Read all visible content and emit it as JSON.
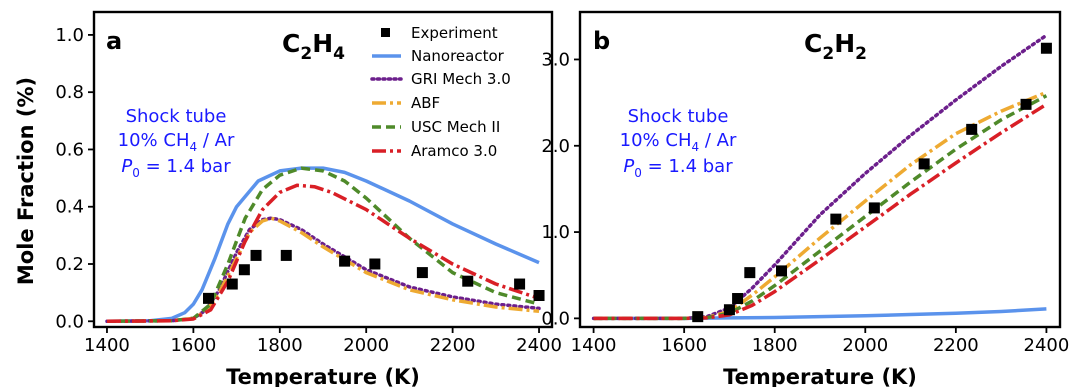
{
  "colors": {
    "experiment": "#000000",
    "nanoreactor": "#5b93ec",
    "gri": "#6c1f8c",
    "abf": "#eeaa32",
    "usc": "#4f8a2a",
    "aramco": "#d91f26",
    "annotation": "#1a1aff"
  },
  "annotation": {
    "line1": "Shock tube",
    "line2_pre": "10% CH",
    "line2_sub": "4",
    "line2_post": " / Ar",
    "line3_sym": "P",
    "line3_sub": "0",
    "line3_post": " = 1.4 bar"
  },
  "chart_data": [
    {
      "type": "line",
      "panel": "a",
      "species": {
        "base1": "C",
        "sub1": "2",
        "base2": "H",
        "sub2": "4"
      },
      "xlabel": "Temperature (K)",
      "ylabel": "Mole Fraction (%)",
      "xlim": [
        1370,
        2430
      ],
      "ylim": [
        -0.02,
        1.08
      ],
      "xticks": [
        1400,
        1600,
        1800,
        2000,
        2200,
        2400
      ],
      "yticks": [
        0.0,
        0.2,
        0.4,
        0.6,
        0.8,
        1.0
      ],
      "ytick_labels": [
        "0.0",
        "0.2",
        "0.4",
        "0.6",
        "0.8",
        "1.0"
      ],
      "legend": {
        "placement": "top-right",
        "entries": [
          "Experiment",
          "Nanoreactor",
          "GRI Mech 3.0",
          "ABF",
          "USC Mech II",
          "Aramco 3.0"
        ]
      },
      "experiment": {
        "name": "Experiment",
        "x": [
          1635,
          1690,
          1718,
          1745,
          1815,
          1950,
          2020,
          2130,
          2235,
          2355,
          2400
        ],
        "y": [
          0.08,
          0.13,
          0.18,
          0.23,
          0.23,
          0.21,
          0.2,
          0.17,
          0.14,
          0.13,
          0.09
        ]
      },
      "series": [
        {
          "name": "Nanoreactor",
          "x": [
            1400,
            1500,
            1550,
            1580,
            1600,
            1620,
            1650,
            1680,
            1700,
            1750,
            1800,
            1850,
            1900,
            1950,
            2000,
            2100,
            2200,
            2300,
            2400
          ],
          "y": [
            0.0,
            0.002,
            0.01,
            0.03,
            0.06,
            0.11,
            0.22,
            0.34,
            0.4,
            0.49,
            0.525,
            0.535,
            0.535,
            0.52,
            0.49,
            0.42,
            0.34,
            0.27,
            0.205
          ]
        },
        {
          "name": "GRI Mech 3.0",
          "x": [
            1400,
            1550,
            1600,
            1630,
            1660,
            1700,
            1730,
            1760,
            1780,
            1800,
            1850,
            1900,
            2000,
            2100,
            2200,
            2300,
            2400
          ],
          "y": [
            0.0,
            0.002,
            0.01,
            0.04,
            0.11,
            0.24,
            0.32,
            0.355,
            0.36,
            0.355,
            0.32,
            0.27,
            0.18,
            0.12,
            0.085,
            0.06,
            0.045
          ]
        },
        {
          "name": "ABF",
          "x": [
            1400,
            1550,
            1600,
            1630,
            1660,
            1700,
            1730,
            1760,
            1780,
            1800,
            1850,
            1900,
            2000,
            2100,
            2200,
            2300,
            2400
          ],
          "y": [
            0.0,
            0.002,
            0.01,
            0.035,
            0.1,
            0.22,
            0.31,
            0.35,
            0.36,
            0.35,
            0.31,
            0.26,
            0.17,
            0.11,
            0.075,
            0.05,
            0.035
          ]
        },
        {
          "name": "USC Mech II",
          "x": [
            1400,
            1550,
            1600,
            1640,
            1680,
            1720,
            1760,
            1800,
            1850,
            1900,
            1950,
            2000,
            2050,
            2100,
            2200,
            2300,
            2400
          ],
          "y": [
            0.0,
            0.002,
            0.01,
            0.06,
            0.2,
            0.36,
            0.46,
            0.51,
            0.535,
            0.525,
            0.49,
            0.43,
            0.36,
            0.29,
            0.17,
            0.1,
            0.06
          ]
        },
        {
          "name": "Aramco 3.0",
          "x": [
            1400,
            1550,
            1600,
            1640,
            1680,
            1720,
            1760,
            1800,
            1840,
            1880,
            1920,
            2000,
            2050,
            2100,
            2200,
            2300,
            2400
          ],
          "y": [
            0.0,
            0.002,
            0.008,
            0.04,
            0.14,
            0.28,
            0.39,
            0.45,
            0.475,
            0.47,
            0.45,
            0.39,
            0.34,
            0.29,
            0.2,
            0.13,
            0.08
          ]
        }
      ]
    },
    {
      "type": "line",
      "panel": "b",
      "species": {
        "base1": "C",
        "sub1": "2",
        "base2": "H",
        "sub2": "2"
      },
      "xlabel": "Temperature (K)",
      "ylabel": "",
      "xlim": [
        1370,
        2430
      ],
      "ylim": [
        -0.1,
        3.55
      ],
      "xticks": [
        1400,
        1600,
        1800,
        2000,
        2200,
        2400
      ],
      "yticks": [
        0.0,
        1.0,
        2.0,
        3.0
      ],
      "ytick_labels": [
        "0.0",
        "1.0",
        "2.0",
        "3.0"
      ],
      "experiment": {
        "name": "Experiment",
        "x": [
          1630,
          1700,
          1718,
          1745,
          1815,
          1935,
          2020,
          2130,
          2235,
          2355,
          2400
        ],
        "y": [
          0.02,
          0.1,
          0.23,
          0.53,
          0.55,
          1.15,
          1.28,
          1.79,
          2.19,
          2.48,
          3.13
        ]
      },
      "series": [
        {
          "name": "Nanoreactor",
          "x": [
            1400,
            1600,
            1700,
            1800,
            1900,
            2000,
            2100,
            2200,
            2300,
            2400
          ],
          "y": [
            0.0,
            0.0,
            0.005,
            0.01,
            0.02,
            0.03,
            0.045,
            0.06,
            0.08,
            0.11
          ]
        },
        {
          "name": "GRI Mech 3.0",
          "x": [
            1400,
            1600,
            1650,
            1700,
            1750,
            1800,
            1900,
            2000,
            2100,
            2200,
            2300,
            2400
          ],
          "y": [
            0.0,
            0.0,
            0.02,
            0.12,
            0.35,
            0.62,
            1.2,
            1.68,
            2.12,
            2.53,
            2.92,
            3.28
          ]
        },
        {
          "name": "ABF",
          "x": [
            1400,
            1600,
            1650,
            1700,
            1750,
            1800,
            1900,
            2000,
            2100,
            2200,
            2300,
            2400
          ],
          "y": [
            0.0,
            0.0,
            0.01,
            0.08,
            0.27,
            0.48,
            0.93,
            1.36,
            1.78,
            2.14,
            2.4,
            2.62
          ]
        },
        {
          "name": "USC Mech II",
          "x": [
            1400,
            1600,
            1650,
            1700,
            1750,
            1800,
            1900,
            2000,
            2100,
            2200,
            2300,
            2400
          ],
          "y": [
            0.0,
            0.0,
            0.008,
            0.06,
            0.2,
            0.38,
            0.78,
            1.18,
            1.58,
            1.96,
            2.3,
            2.58
          ]
        },
        {
          "name": "Aramco 3.0",
          "x": [
            1400,
            1600,
            1650,
            1700,
            1750,
            1800,
            1900,
            2000,
            2100,
            2200,
            2300,
            2400
          ],
          "y": [
            0.0,
            0.0,
            0.005,
            0.04,
            0.15,
            0.31,
            0.68,
            1.06,
            1.44,
            1.8,
            2.15,
            2.48
          ]
        }
      ]
    }
  ]
}
